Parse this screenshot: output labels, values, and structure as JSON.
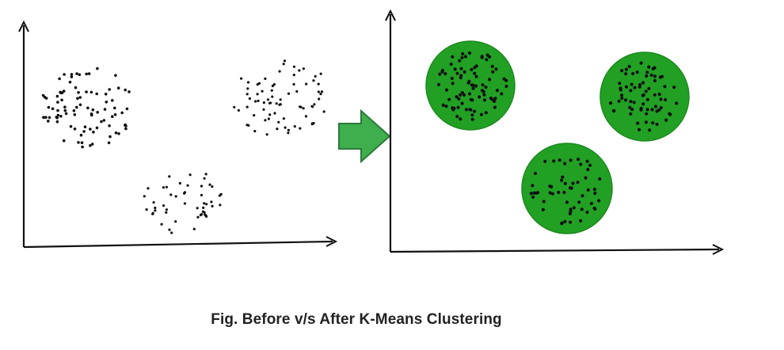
{
  "caption": "Fig. Before v/s After K-Means Clustering",
  "colors": {
    "axis": "#111111",
    "point": "#111111",
    "cluster_fill": "#22a024",
    "cluster_stroke": "#1c8a1f",
    "arrow_fill": "#3fae4d",
    "arrow_stroke": "#2c7a3a",
    "caption": "#222222"
  },
  "panels": [
    {
      "name": "before",
      "clustered": false,
      "cluster_count": 3,
      "points_per_cluster": [
        90,
        75,
        50
      ]
    },
    {
      "name": "after",
      "clustered": true,
      "cluster_count": 3,
      "points_per_cluster": [
        85,
        70,
        55
      ]
    }
  ],
  "arrow_icon": "right-arrow-icon"
}
